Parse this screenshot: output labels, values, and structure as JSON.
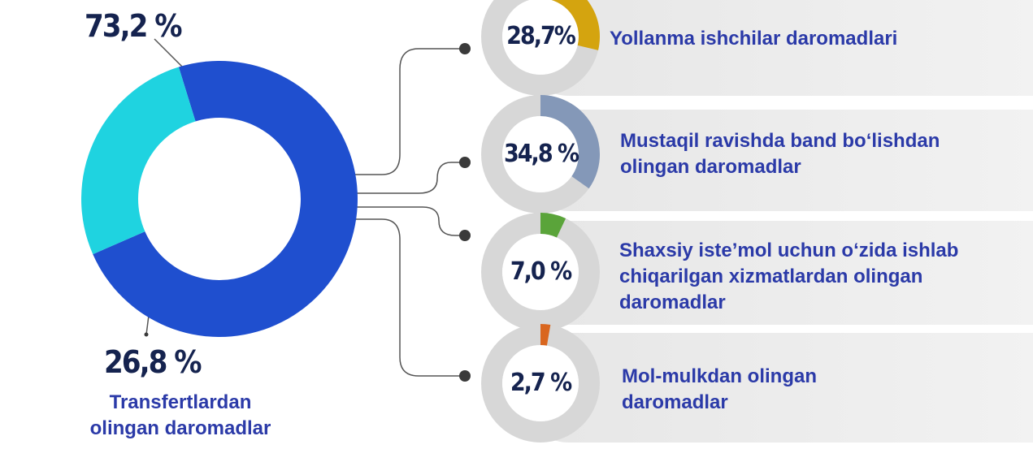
{
  "chart_data": [
    {
      "type": "donut",
      "categories": [
        null,
        "Transfertlardan olingan daromadlar"
      ],
      "values": [
        73.2,
        26.8
      ],
      "value_labels": [
        "73,2 %",
        "26,8 %"
      ],
      "colors": [
        "#1f4fcf",
        "#1fd3e0"
      ]
    },
    {
      "type": "ring",
      "categories": [
        "Yollanma ishchilar daromadlari"
      ],
      "values": [
        28.7
      ],
      "value_labels": [
        "28,7%"
      ],
      "color": "#d4a40f"
    },
    {
      "type": "ring",
      "categories": [
        "Mustaqil ravishda band bo‘lishdan olingan daromadlar"
      ],
      "values": [
        34.8
      ],
      "value_labels": [
        "34,8 %"
      ],
      "color": "#8498b8"
    },
    {
      "type": "ring",
      "categories": [
        "Shaxsiy iste’mol uchun o‘zida ishlab chiqarilgan  xizmatlardan olingan daromadlar"
      ],
      "values": [
        7.0
      ],
      "value_labels": [
        "7,0 %"
      ],
      "color": "#5aa43a"
    },
    {
      "type": "ring",
      "categories": [
        "Mol-mulkdan olingan daromadlar"
      ],
      "values": [
        2.7
      ],
      "value_labels": [
        "2,7 %"
      ],
      "color": "#d9661f"
    }
  ]
}
